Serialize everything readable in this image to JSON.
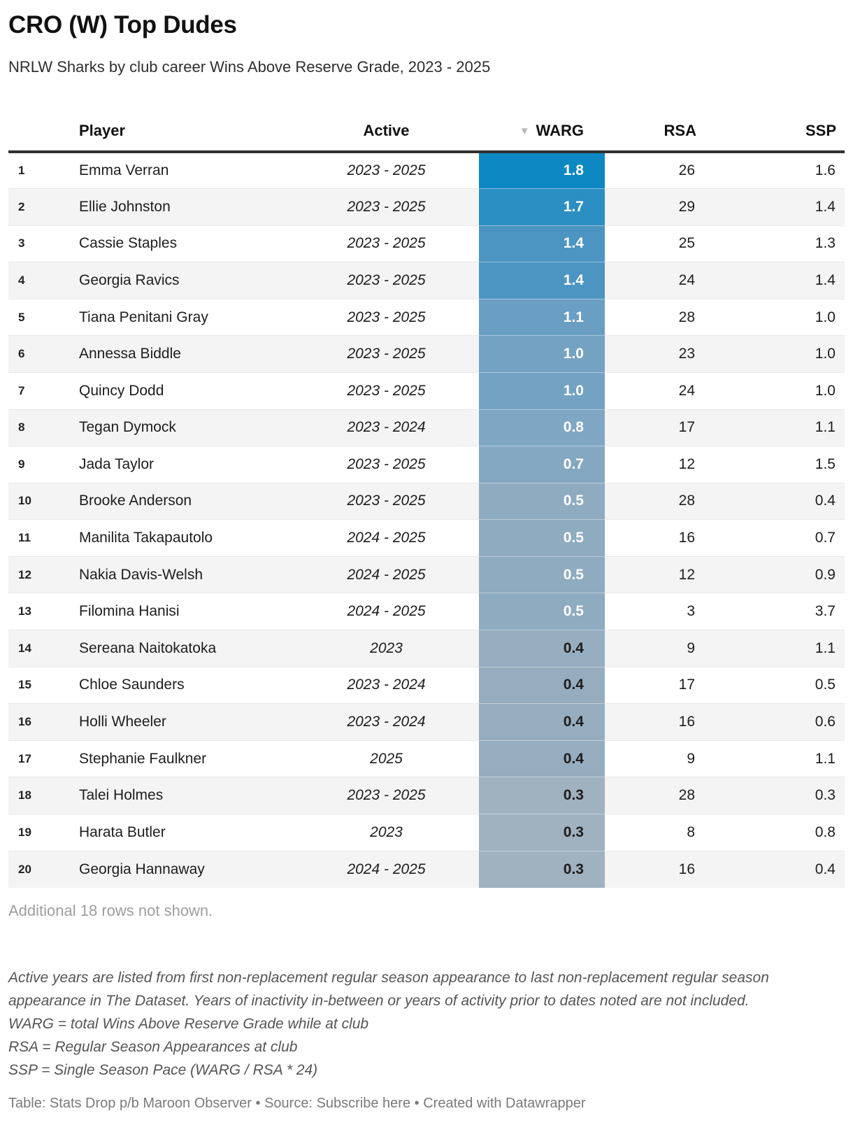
{
  "title": "CRO (W) Top Dudes",
  "subtitle": "NRLW Sharks by club career Wins Above Reserve Grade, 2023 - 2025",
  "table_ui": {
    "sort_icon": "▼",
    "rank_header": ""
  },
  "chart_data": {
    "type": "table",
    "title": "CRO (W) Top Dudes",
    "subtitle": "NRLW Sharks by club career Wins Above Reserve Grade, 2023 - 2025",
    "columns": [
      "Player",
      "Active",
      "WARG",
      "RSA",
      "SSP"
    ],
    "sorted_by": "WARG",
    "sort_order": "descending",
    "heatmap_column": "WARG",
    "heatmap_scale": {
      "max_color": "#0e88c3",
      "min_color": "#a0b1bf"
    },
    "rows": [
      {
        "rank": "1",
        "player": "Emma Verran",
        "active": "2023 - 2025",
        "warg": "1.8",
        "rsa": "26",
        "ssp": "1.6",
        "warg_bg": "#0e88c3",
        "warg_fg": "#ffffff"
      },
      {
        "rank": "2",
        "player": "Ellie Johnston",
        "active": "2023 - 2025",
        "warg": "1.7",
        "rsa": "29",
        "ssp": "1.4",
        "warg_bg": "#2b8fc3",
        "warg_fg": "#ffffff"
      },
      {
        "rank": "3",
        "player": "Cassie Staples",
        "active": "2023 - 2025",
        "warg": "1.4",
        "rsa": "25",
        "ssp": "1.3",
        "warg_bg": "#4c95c2",
        "warg_fg": "#ffffff"
      },
      {
        "rank": "4",
        "player": "Georgia Ravics",
        "active": "2023 - 2025",
        "warg": "1.4",
        "rsa": "24",
        "ssp": "1.4",
        "warg_bg": "#4c95c2",
        "warg_fg": "#ffffff"
      },
      {
        "rank": "5",
        "player": "Tiana Penitani Gray",
        "active": "2023 - 2025",
        "warg": "1.1",
        "rsa": "28",
        "ssp": "1.0",
        "warg_bg": "#6b9ec3",
        "warg_fg": "#ffffff"
      },
      {
        "rank": "6",
        "player": "Annessa Biddle",
        "active": "2023 - 2025",
        "warg": "1.0",
        "rsa": "23",
        "ssp": "1.0",
        "warg_bg": "#74a2c3",
        "warg_fg": "#ffffff"
      },
      {
        "rank": "7",
        "player": "Quincy Dodd",
        "active": "2023 - 2025",
        "warg": "1.0",
        "rsa": "24",
        "ssp": "1.0",
        "warg_bg": "#74a2c3",
        "warg_fg": "#ffffff"
      },
      {
        "rank": "8",
        "player": "Tegan Dymock",
        "active": "2023 - 2024",
        "warg": "0.8",
        "rsa": "17",
        "ssp": "1.1",
        "warg_bg": "#7fa7c3",
        "warg_fg": "#ffffff"
      },
      {
        "rank": "9",
        "player": "Jada Taylor",
        "active": "2023 - 2025",
        "warg": "0.7",
        "rsa": "12",
        "ssp": "1.5",
        "warg_bg": "#85a8c2",
        "warg_fg": "#ffffff"
      },
      {
        "rank": "10",
        "player": "Brooke Anderson",
        "active": "2023 - 2025",
        "warg": "0.5",
        "rsa": "28",
        "ssp": "0.4",
        "warg_bg": "#8eabc0",
        "warg_fg": "#ffffff"
      },
      {
        "rank": "11",
        "player": "Manilita Takapautolo",
        "active": "2024 - 2025",
        "warg": "0.5",
        "rsa": "16",
        "ssp": "0.7",
        "warg_bg": "#8eabc0",
        "warg_fg": "#ffffff"
      },
      {
        "rank": "12",
        "player": "Nakia Davis-Welsh",
        "active": "2024 - 2025",
        "warg": "0.5",
        "rsa": "12",
        "ssp": "0.9",
        "warg_bg": "#8eabc0",
        "warg_fg": "#ffffff"
      },
      {
        "rank": "13",
        "player": "Filomina Hanisi",
        "active": "2024 - 2025",
        "warg": "0.5",
        "rsa": "3",
        "ssp": "3.7",
        "warg_bg": "#8eabc0",
        "warg_fg": "#ffffff"
      },
      {
        "rank": "14",
        "player": "Sereana Naitokatoka",
        "active": "2023",
        "warg": "0.4",
        "rsa": "9",
        "ssp": "1.1",
        "warg_bg": "#96adbf",
        "warg_fg": "#1d1d1d"
      },
      {
        "rank": "15",
        "player": "Chloe Saunders",
        "active": "2023 - 2024",
        "warg": "0.4",
        "rsa": "17",
        "ssp": "0.5",
        "warg_bg": "#96adbf",
        "warg_fg": "#1d1d1d"
      },
      {
        "rank": "16",
        "player": "Holli Wheeler",
        "active": "2023 - 2024",
        "warg": "0.4",
        "rsa": "16",
        "ssp": "0.6",
        "warg_bg": "#96adbf",
        "warg_fg": "#1d1d1d"
      },
      {
        "rank": "17",
        "player": "Stephanie Faulkner",
        "active": "2025",
        "warg": "0.4",
        "rsa": "9",
        "ssp": "1.1",
        "warg_bg": "#96adbf",
        "warg_fg": "#1d1d1d"
      },
      {
        "rank": "18",
        "player": "Talei Holmes",
        "active": "2023 - 2025",
        "warg": "0.3",
        "rsa": "28",
        "ssp": "0.3",
        "warg_bg": "#a0b1bf",
        "warg_fg": "#1d1d1d"
      },
      {
        "rank": "19",
        "player": "Harata Butler",
        "active": "2023",
        "warg": "0.3",
        "rsa": "8",
        "ssp": "0.8",
        "warg_bg": "#a0b1bf",
        "warg_fg": "#1d1d1d"
      },
      {
        "rank": "20",
        "player": "Georgia Hannaway",
        "active": "2024 - 2025",
        "warg": "0.3",
        "rsa": "16",
        "ssp": "0.4",
        "warg_bg": "#a0b1bf",
        "warg_fg": "#1d1d1d"
      }
    ]
  },
  "pagination_note": "Additional 18 rows not shown.",
  "notes": [
    "Active years are listed from first non-replacement regular season appearance to last non-replacement regular season appearance in The Dataset. Years of inactivity in-between or years of activity prior to dates noted are not included.",
    "WARG = total Wins Above Reserve Grade while at club",
    "RSA = Regular Season Appearances at club",
    "SSP = Single Season Pace (WARG / RSA * 24)"
  ],
  "footer": {
    "table_credit": "Table: Stats Drop p/b Maroon Observer",
    "separator": " • ",
    "source_label": "Source: ",
    "source_link": "Subscribe here",
    "separator2": " • ",
    "created_with": "Created with Datawrapper"
  },
  "colors": {
    "header_rule": "#2f2f2f",
    "row_stripe": "#f4f4f4",
    "row_border": "#e8e8e8"
  }
}
